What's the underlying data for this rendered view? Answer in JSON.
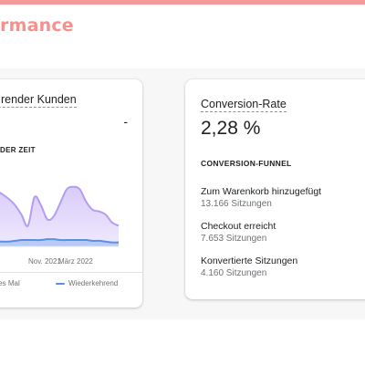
{
  "section": {
    "title": "rmance"
  },
  "left_card": {
    "title": "render Kunden",
    "value_placeholder": "-",
    "subtitle": "DER ZEIT",
    "x_axis_labels": [
      "Nov. 2021",
      "März 2022"
    ],
    "legend": [
      {
        "label": "tes Mal",
        "color": "#a98bf0"
      },
      {
        "label": "Wiederkehrend",
        "color": "#5c8ee6"
      }
    ],
    "chart_data": {
      "type": "area",
      "x": [
        "",
        "",
        "",
        "",
        "",
        "",
        "",
        "",
        "",
        "",
        "",
        "",
        "",
        "",
        "",
        "",
        "",
        "",
        "",
        "",
        ""
      ],
      "series": [
        {
          "values": [
            72,
            70,
            66,
            60,
            52,
            40,
            26,
            62,
            52,
            34,
            38,
            55,
            72,
            75,
            72,
            56,
            46,
            44,
            40,
            30,
            26
          ]
        },
        {
          "values": [
            6,
            6,
            6,
            6,
            7,
            8,
            8,
            8,
            8,
            9,
            9,
            8,
            8,
            8,
            8,
            8,
            7,
            7,
            6,
            5,
            5
          ]
        }
      ],
      "colors": {
        "first": "#b49cf2",
        "first_fill": "#d9ccfa",
        "returning": "#5c8ee6",
        "returning_fill": "#a9c3f0"
      },
      "ylim": [
        0,
        100
      ],
      "grid": false
    }
  },
  "right_card": {
    "title": "Conversion-Rate",
    "value": "2,28 %",
    "funnel_title": "CONVERSION-FUNNEL",
    "steps": [
      {
        "label": "Zum Warenkorb hinzugefügt",
        "sessions": "13.166 Sitzungen"
      },
      {
        "label": "Checkout erreicht",
        "sessions": "7.653 Sitzungen"
      },
      {
        "label": "Konvertierte Sitzungen",
        "sessions": "4.160 Sitzungen"
      }
    ]
  }
}
